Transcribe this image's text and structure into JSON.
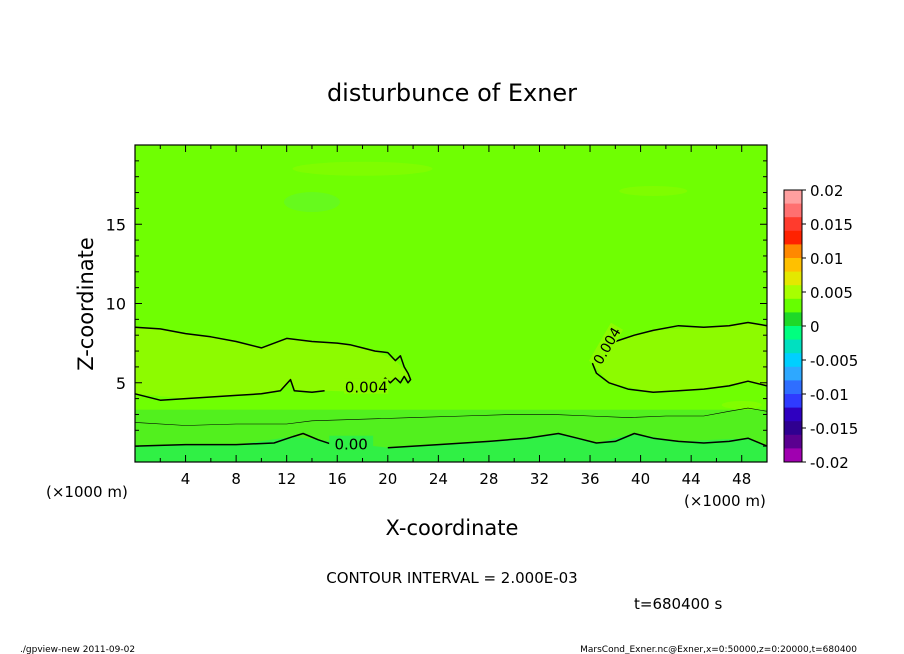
{
  "chart_data": {
    "type": "heatmap",
    "title": "disturbunce of Exner",
    "xlabel": "X-coordinate",
    "ylabel": "Z-coordinate",
    "x_unit": "(×1000 m)",
    "xlim": [
      0,
      50
    ],
    "ylim": [
      0,
      20
    ],
    "x_ticks": [
      4,
      8,
      12,
      16,
      20,
      24,
      28,
      32,
      36,
      40,
      44,
      48
    ],
    "y_ticks": [
      5,
      10,
      15
    ],
    "contour_interval_text": "CONTOUR INTERVAL = 2.000E-03",
    "time_text": "t=680400 s",
    "contour_labels": [
      {
        "text": "0.004",
        "x": 18.3,
        "z": 4.5
      },
      {
        "text": "0.004",
        "x": 37.4,
        "z": 7.3
      },
      {
        "text": "0.00",
        "x": 17.1,
        "z": 0.9
      }
    ],
    "contour_lines": [
      {
        "level": "0.004",
        "points": [
          [
            0,
            8.5
          ],
          [
            2,
            8.4
          ],
          [
            4,
            8.1
          ],
          [
            6,
            7.9
          ],
          [
            8,
            7.6
          ],
          [
            10,
            7.2
          ],
          [
            12,
            7.8
          ],
          [
            14,
            7.6
          ],
          [
            16,
            7.5
          ],
          [
            17,
            7.4
          ],
          [
            18,
            7.2
          ],
          [
            19,
            7.0
          ],
          [
            20,
            6.9
          ],
          [
            20.6,
            6.4
          ],
          [
            21,
            6.7
          ],
          [
            21.3,
            6.0
          ],
          [
            21.6,
            5.6
          ],
          [
            21.8,
            5.2
          ],
          [
            21.6,
            5.0
          ],
          [
            21.3,
            5.4
          ],
          [
            21.0,
            5.0
          ],
          [
            20.6,
            5.3
          ],
          [
            20.2,
            5.0
          ],
          [
            19.8,
            5.3
          ],
          [
            19.3,
            4.9
          ],
          [
            18.8,
            4.4
          ]
        ]
      },
      {
        "level": "0.004",
        "points": [
          [
            0,
            4.3
          ],
          [
            2,
            3.9
          ],
          [
            4,
            4.0
          ],
          [
            6,
            4.1
          ],
          [
            8,
            4.2
          ],
          [
            10,
            4.3
          ],
          [
            11.5,
            4.5
          ],
          [
            12.3,
            5.2
          ],
          [
            12.6,
            4.5
          ],
          [
            14,
            4.4
          ],
          [
            15,
            4.5
          ]
        ]
      },
      {
        "level": "0.004",
        "points": [
          [
            50,
            4.8
          ],
          [
            48.5,
            5.1
          ],
          [
            47,
            4.8
          ],
          [
            45,
            4.6
          ],
          [
            43,
            4.5
          ],
          [
            41,
            4.4
          ],
          [
            39,
            4.6
          ],
          [
            37.5,
            5.0
          ],
          [
            36.5,
            5.6
          ],
          [
            36.2,
            6.2
          ],
          [
            36.7,
            6.8
          ],
          [
            38,
            7.6
          ],
          [
            39.5,
            8.0
          ],
          [
            41,
            8.3
          ],
          [
            43,
            8.6
          ],
          [
            45,
            8.5
          ],
          [
            47,
            8.6
          ],
          [
            48.5,
            8.8
          ],
          [
            50,
            8.6
          ]
        ]
      },
      {
        "level": "0.00",
        "points": [
          [
            0,
            1.0
          ],
          [
            4,
            1.1
          ],
          [
            8,
            1.1
          ],
          [
            11,
            1.2
          ],
          [
            12.5,
            1.6
          ],
          [
            13.3,
            1.8
          ],
          [
            14.5,
            1.4
          ],
          [
            16,
            1.0
          ]
        ],
        "smooth": true
      },
      {
        "level": "0.00",
        "points": [
          [
            20,
            0.9
          ],
          [
            24,
            1.1
          ],
          [
            28,
            1.3
          ],
          [
            31,
            1.5
          ],
          [
            33.5,
            1.8
          ],
          [
            35,
            1.5
          ],
          [
            36.5,
            1.2
          ],
          [
            38,
            1.3
          ],
          [
            39.5,
            1.8
          ],
          [
            41,
            1.5
          ],
          [
            43,
            1.3
          ],
          [
            45,
            1.2
          ],
          [
            47,
            1.3
          ],
          [
            48.5,
            1.5
          ],
          [
            50,
            1.0
          ]
        ]
      },
      {
        "level": "0.002",
        "points": [
          [
            0,
            2.5
          ],
          [
            4,
            2.3
          ],
          [
            8,
            2.4
          ],
          [
            12,
            2.4
          ],
          [
            14,
            2.6
          ],
          [
            18,
            2.7
          ],
          [
            22,
            2.8
          ],
          [
            26,
            2.9
          ],
          [
            30,
            3.0
          ],
          [
            33,
            3.0
          ],
          [
            36,
            2.9
          ],
          [
            39,
            2.8
          ],
          [
            42,
            2.9
          ],
          [
            45,
            2.9
          ],
          [
            47,
            3.2
          ],
          [
            48.5,
            3.4
          ],
          [
            50,
            3.2
          ]
        ],
        "thin": true
      }
    ],
    "colorbar": {
      "ticks": [
        "0.02",
        "0.015",
        "0.01",
        "0.005",
        "0",
        "-0.005",
        "-0.01",
        "-0.015",
        "-0.02"
      ],
      "colors": [
        "#ff9f9f",
        "#ff7070",
        "#ff3b2d",
        "#ff2200",
        "#ff8800",
        "#ffc000",
        "#e4e800",
        "#a8ff00",
        "#66ff00",
        "#1ed928",
        "#00ff7f",
        "#00e0c0",
        "#00cfff",
        "#2ea8ff",
        "#2f6eff",
        "#2f3bff",
        "#2f00c0",
        "#2f0090",
        "#5a0090",
        "#a000b0"
      ]
    },
    "fill_colors": {
      "background": "#6fff02",
      "band_0004": "#8dfb00",
      "band_0002_lower": "#4fee23",
      "band_0002": "#52f01e",
      "band_0": "#30f045",
      "patch": "#62f82a"
    }
  },
  "footer": {
    "left": "./gpview-new   2011-09-02",
    "right": "MarsCond_Exner.nc@Exner,x=0:50000,z=0:20000,t=680400"
  }
}
